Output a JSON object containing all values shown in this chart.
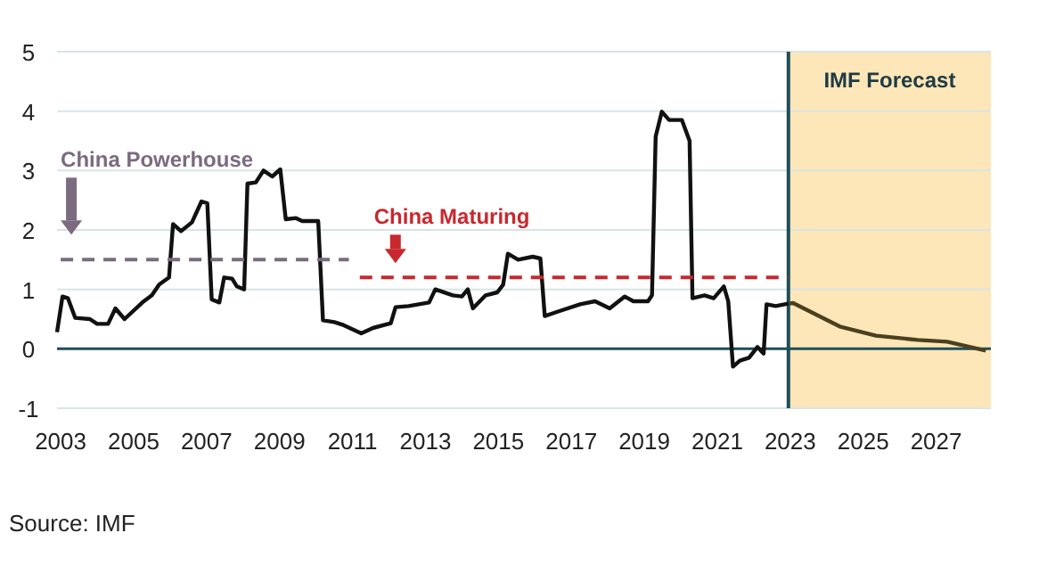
{
  "chart_data": {
    "type": "line",
    "xlim": [
      2002.9,
      2028.5
    ],
    "xticks": [
      2003,
      2005,
      2007,
      2009,
      2011,
      2013,
      2015,
      2017,
      2019,
      2021,
      2023,
      2025,
      2027
    ],
    "ylim": [
      -1,
      5
    ],
    "yticks": [
      -1,
      0,
      1,
      2,
      3,
      4,
      5
    ],
    "grid": "y",
    "marker": "none",
    "series": [
      {
        "color": "#111111",
        "x": [
          2002.9,
          2003.05,
          2003.2,
          2003.4,
          2003.8,
          2004.0,
          2004.3,
          2004.5,
          2004.75,
          2005.24,
          2005.5,
          2005.7,
          2005.97,
          2006.08,
          2006.3,
          2006.6,
          2006.86,
          2007.02,
          2007.14,
          2007.35,
          2007.48,
          2007.7,
          2007.83,
          2008.03,
          2008.12,
          2008.35,
          2008.56,
          2008.8,
          2009.02,
          2009.17,
          2009.45,
          2009.62,
          2010.06,
          2010.19,
          2010.5,
          2010.75,
          2011.24,
          2011.56,
          2012.05,
          2012.18,
          2012.54,
          2013.1,
          2013.27,
          2013.75,
          2014.0,
          2014.16,
          2014.3,
          2014.65,
          2014.97,
          2015.13,
          2015.26,
          2015.54,
          2015.94,
          2016.15,
          2016.27,
          2016.6,
          2017.24,
          2017.65,
          2018.05,
          2018.46,
          2018.7,
          2019.1,
          2019.21,
          2019.31,
          2019.48,
          2019.68,
          2020.03,
          2020.24,
          2020.32,
          2020.65,
          2020.9,
          2021.18,
          2021.3,
          2021.43,
          2021.62,
          2021.87,
          2022.1,
          2022.27,
          2022.35,
          2022.6,
          2022.95
        ],
        "values": [
          0.28,
          0.88,
          0.85,
          0.52,
          0.5,
          0.42,
          0.42,
          0.68,
          0.5,
          0.78,
          0.9,
          1.08,
          1.2,
          2.1,
          1.98,
          2.13,
          2.48,
          2.45,
          0.83,
          0.78,
          1.2,
          1.18,
          1.05,
          1.0,
          2.78,
          2.8,
          3.0,
          2.9,
          3.02,
          2.18,
          2.2,
          2.15,
          2.15,
          0.48,
          0.45,
          0.4,
          0.26,
          0.35,
          0.43,
          0.7,
          0.72,
          0.78,
          1.0,
          0.9,
          0.88,
          1.0,
          0.68,
          0.9,
          0.95,
          1.08,
          1.6,
          1.5,
          1.55,
          1.52,
          0.55,
          0.62,
          0.75,
          0.8,
          0.68,
          0.88,
          0.8,
          0.8,
          0.9,
          3.57,
          3.99,
          3.85,
          3.85,
          3.5,
          0.85,
          0.9,
          0.85,
          1.05,
          0.8,
          -0.3,
          -0.2,
          -0.15,
          0.03,
          -0.08,
          0.75,
          0.72,
          0.76
        ]
      },
      {
        "color": "#4a4020",
        "x": [
          2022.95,
          2023.08,
          2024.38,
          2025.35,
          2026.49,
          2027.3,
          2028.36
        ],
        "values": [
          0.76,
          0.77,
          0.37,
          0.22,
          0.15,
          0.12,
          -0.03
        ]
      },
      {
        "name": "China Powerhouse",
        "color": "#7b6b80",
        "line_style": "dashed",
        "x": [
          2003,
          2010.9
        ],
        "values": [
          1.5,
          1.5
        ]
      },
      {
        "name": "China Maturing",
        "color": "#c8282e",
        "line_style": "dashed",
        "x": [
          2011.2,
          2022.95
        ],
        "values": [
          1.2,
          1.2
        ]
      }
    ],
    "ref_lines": [
      {
        "axis": "y",
        "value": 0,
        "color": "#1f4e5a"
      },
      {
        "axis": "x",
        "value": 2022.95,
        "color": "#1f4e5a"
      }
    ],
    "bands": [
      {
        "axis": "x",
        "from": 2022.95,
        "to": 2028.5,
        "label": "IMF Forecast",
        "color": "#fde7b8"
      }
    ],
    "annotations": [
      "Source: IMF"
    ]
  }
}
